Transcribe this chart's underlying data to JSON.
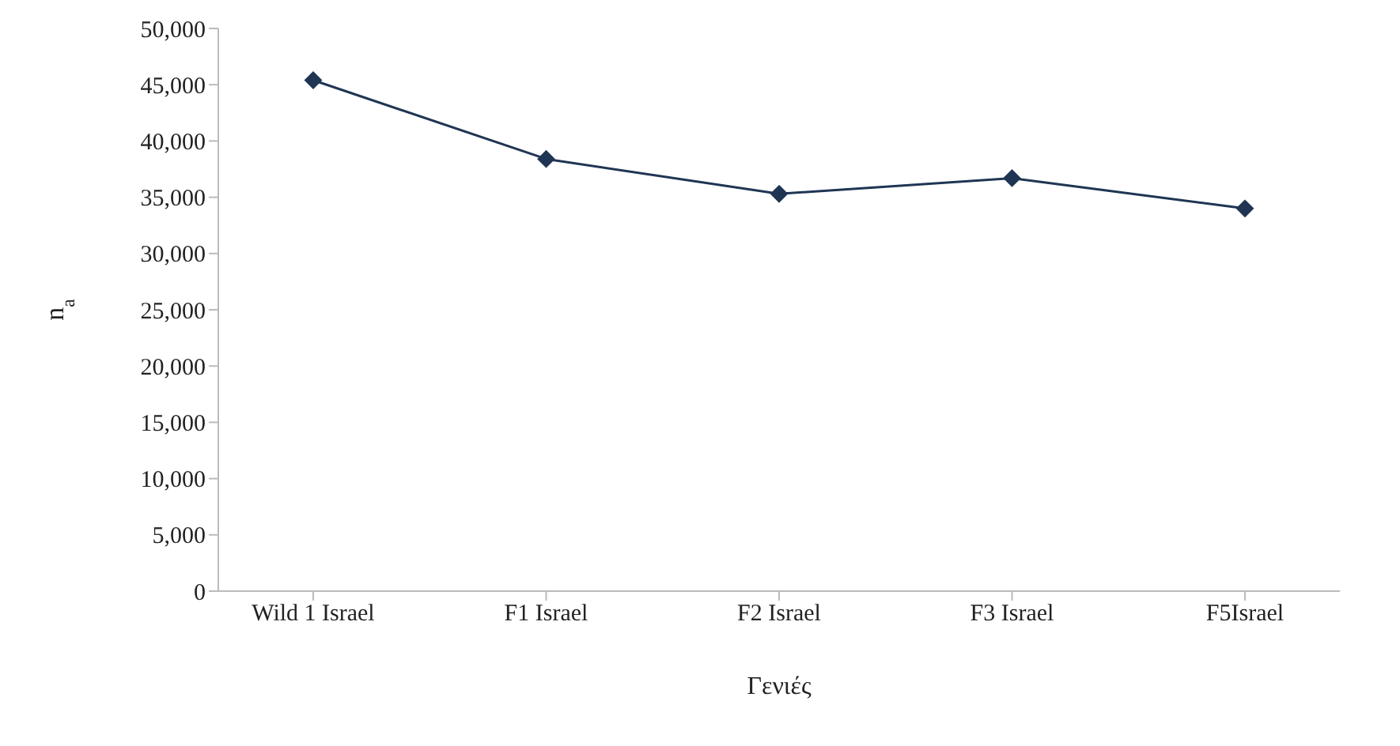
{
  "chart_data": {
    "type": "line",
    "xlabel": "Γενιές",
    "ylabel": "n$_{a}$",
    "categories": [
      "Wild 1 Israel",
      "F1 Israel",
      "F2 Israel",
      "F3 Israel",
      "F5Israel"
    ],
    "series": [
      {
        "color": "#1f3553",
        "values": [
          45400,
          38400,
          35300,
          36700,
          34000
        ]
      }
    ],
    "ylim": [
      0,
      50000
    ],
    "yticks": [
      0,
      {
        "value": 5000,
        "label": "5,000"
      },
      {
        "value": 10000,
        "label": "10,000"
      },
      {
        "value": 15000,
        "label": "15,000"
      },
      {
        "value": 20000,
        "label": "20,000"
      },
      {
        "value": 25000,
        "label": "25,000"
      },
      {
        "value": 30000,
        "label": "30,000"
      },
      {
        "value": 35000,
        "label": "35,000"
      },
      {
        "value": 40000,
        "label": "40,000"
      },
      {
        "value": 45000,
        "label": "45,000"
      },
      {
        "value": 50000,
        "label": "50,000"
      }
    ],
    "grid": false,
    "legend": false,
    "marker": "diamond",
    "line_style": "solid"
  }
}
